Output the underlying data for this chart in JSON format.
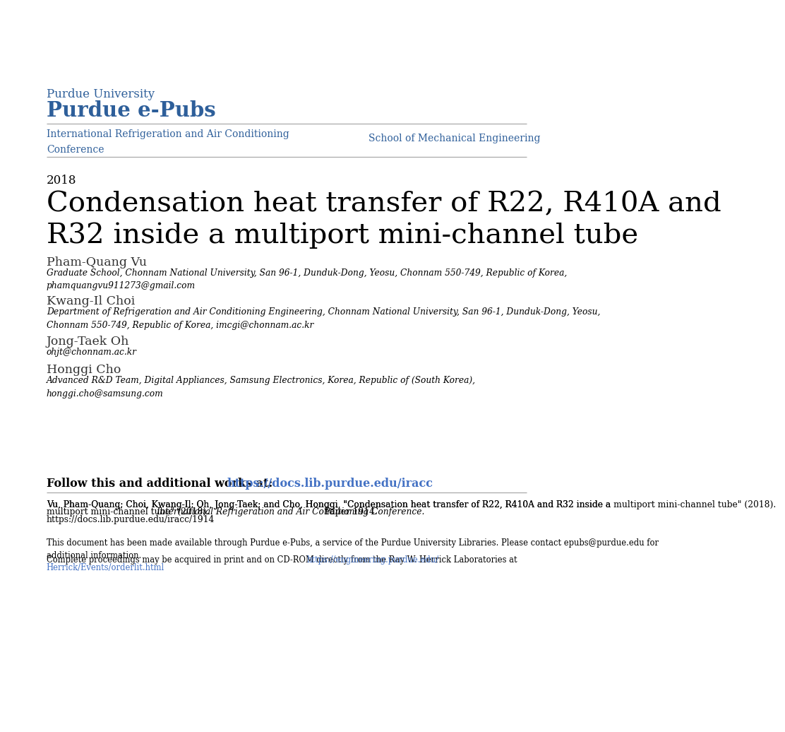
{
  "bg_color": "#ffffff",
  "purdue_university": "Purdue University",
  "purdue_epubs": "Purdue e-Pubs",
  "header_color": "#2E5F9A",
  "left_header": "International Refrigeration and Air Conditioning\nConference",
  "right_header": "School of Mechanical Engineering",
  "year": "2018",
  "main_title": "Condensation heat transfer of R22, R410A and\nR32 inside a multiport mini-channel tube",
  "author1_name": "Pham-Quang Vu",
  "author1_detail": "Graduate School, Chonnam National University, San 96-1, Dunduk-Dong, Yeosu, Chonnam 550-749, Republic of Korea,\nphamquangvu911273@gmail.com",
  "author2_name": "Kwang-Il Choi",
  "author2_detail": "Department of Refrigeration and Air Conditioning Engineering, Chonnam National University, San 96-1, Dunduk-Dong, Yeosu,\nChonnam 550-749, Republic of Korea, imcgi@chonnam.ac.kr",
  "author3_name": "Jong-Taek Oh",
  "author3_detail": "ohjt@chonnam.ac.kr",
  "author4_name": "Honggi Cho",
  "author4_detail": "Advanced R&D Team, Digital Appliances, Samsung Electronics, Korea, Republic of (South Korea),\nhonggi.cho@samsung.com",
  "follow_text": "Follow this and additional works at: ",
  "follow_link": "https://docs.lib.purdue.edu/iracc",
  "citation_normal1": "Vu, Pham-Quang; Choi, Kwang-Il; Oh, Jong-Taek; and Cho, Honggi, \"Condensation heat transfer of R22, R410A and R32 inside a multiport mini-channel tube\" (2018). ",
  "citation_italic": "International Refrigeration and Air Conditioning Conference.",
  "citation_normal2": " Paper 1914.",
  "citation_url": "https://docs.lib.purdue.edu/iracc/1914",
  "disclaimer1": "This document has been made available through Purdue e-Pubs, a service of the Purdue University Libraries. Please contact epubs@purdue.edu for\nadditional information.",
  "disclaimer2_pre": "Complete proceedings may be acquired in print and on CD-ROM directly from the Ray W. Herrick Laboratories at ",
  "disclaimer2_link_line1": "https://engineering.purdue.edu/",
  "disclaimer2_link_line2": "Herrick/Events/orderlit.html",
  "link_color": "#4472C4",
  "separator_color": "#AAAAAA",
  "text_color": "#000000",
  "author_name_color": "#333333"
}
